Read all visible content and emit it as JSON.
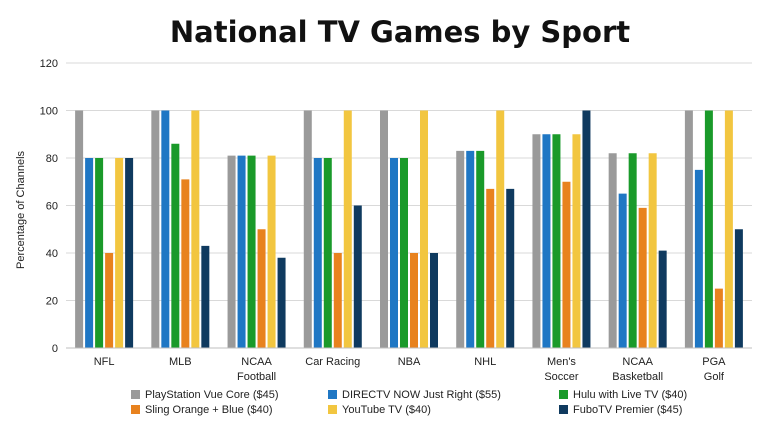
{
  "chart_data": {
    "type": "bar",
    "title": "National TV Games by Sport",
    "ylabel": "Percentage of Channels",
    "xlabel": "",
    "ylim": [
      0,
      120
    ],
    "yticks": [
      0,
      20,
      40,
      60,
      80,
      100,
      120
    ],
    "grid": true,
    "legend_position": "bottom",
    "categories": [
      [
        "NFL"
      ],
      [
        "MLB"
      ],
      [
        "NCAA",
        "Football"
      ],
      [
        "Car Racing"
      ],
      [
        "NBA"
      ],
      [
        "NHL"
      ],
      [
        "Men's",
        "Soccer"
      ],
      [
        "NCAA",
        "Basketball"
      ],
      [
        "PGA",
        "Golf"
      ]
    ],
    "series": [
      {
        "name": "PlayStation Vue Core ($45)",
        "color": "#9a9a9a",
        "values": [
          100,
          100,
          81,
          100,
          100,
          83,
          90,
          82,
          100
        ]
      },
      {
        "name": "DIRECTV NOW Just Right ($55)",
        "color": "#1f77c4",
        "values": [
          80,
          100,
          81,
          80,
          80,
          83,
          90,
          65,
          75
        ]
      },
      {
        "name": "Hulu with Live TV ($40)",
        "color": "#1a9a2a",
        "values": [
          80,
          86,
          81,
          80,
          80,
          83,
          90,
          82,
          100
        ]
      },
      {
        "name": "Sling Orange + Blue ($40)",
        "color": "#e8821e",
        "values": [
          40,
          71,
          50,
          40,
          40,
          67,
          70,
          59,
          25
        ]
      },
      {
        "name": "YouTube TV ($40)",
        "color": "#f2c640",
        "values": [
          80,
          100,
          81,
          100,
          100,
          100,
          90,
          82,
          100
        ]
      },
      {
        "name": "FuboTV Premier ($45)",
        "color": "#0f3a5f",
        "values": [
          80,
          43,
          38,
          60,
          40,
          67,
          100,
          41,
          50
        ]
      }
    ]
  }
}
